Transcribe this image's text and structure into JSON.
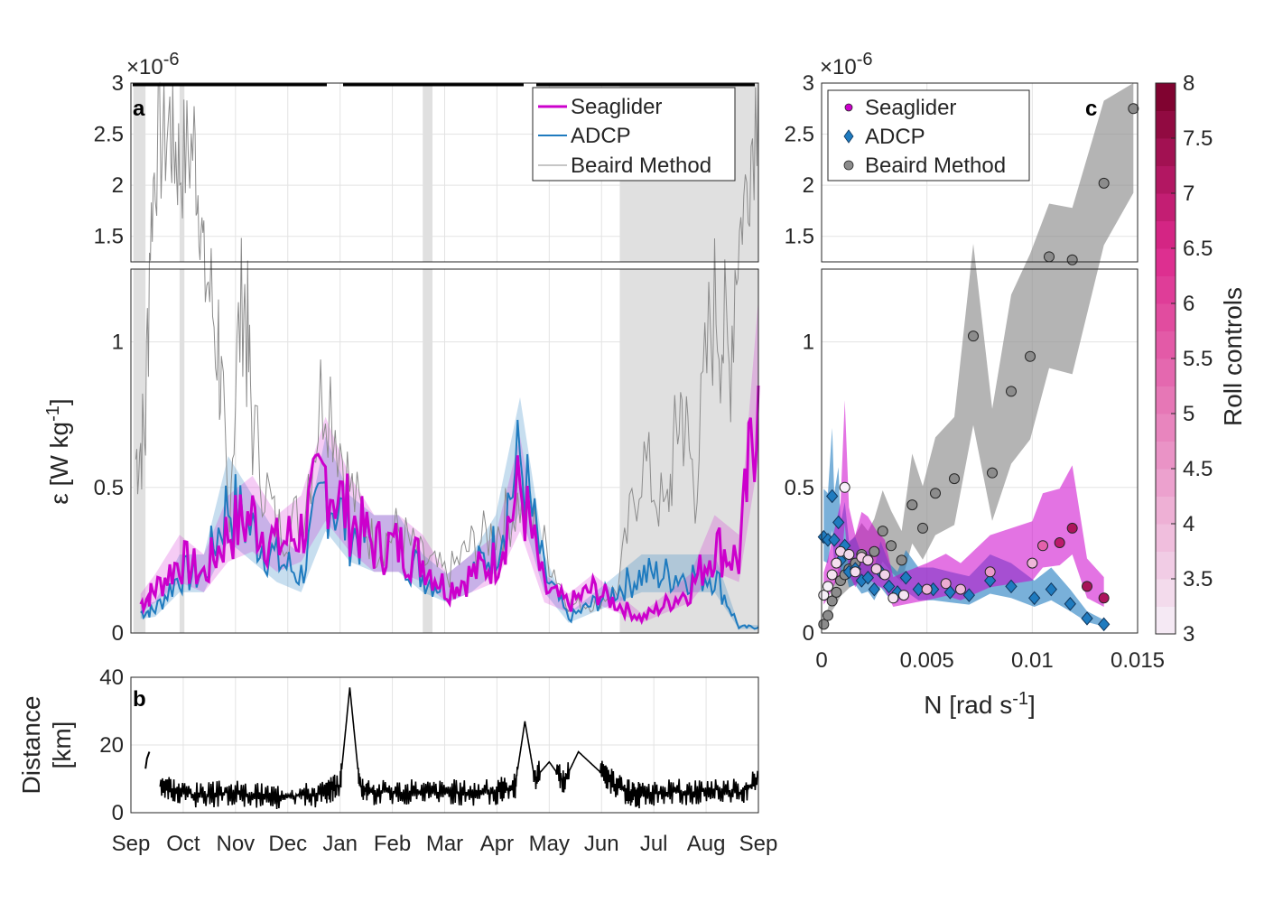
{
  "figure": {
    "panel_labels": {
      "a": "a",
      "b": "b",
      "c": "c"
    },
    "exponent_label": "×10",
    "exponent_power": "-6",
    "y_label_eps": "ε [W kg",
    "y_label_eps_sup": "-1",
    "y_label_eps_end": "]",
    "y_label_dist_1": "Distance",
    "y_label_dist_2": "[km]",
    "x_label_N": "N [rad s",
    "x_label_N_sup": "-1",
    "x_label_N_end": "]",
    "colorbar_label": "Roll controls"
  },
  "colors": {
    "seaglider": "#cc00cc",
    "adcp": "#1f7bbf",
    "beaird": "#8c8c8c",
    "shading": "#e0e0e0",
    "black": "#000000"
  },
  "chart_data": [
    {
      "panel": "a",
      "type": "line",
      "x_ticks": [
        "Sep",
        "Oct",
        "Nov",
        "Dec",
        "Jan",
        "Feb",
        "Mar",
        "Apr",
        "May",
        "Jun",
        "Jul",
        "Aug",
        "Sep"
      ],
      "y_ticks_lower": [
        "0",
        "0.5",
        "1"
      ],
      "y_ticks_upper": [
        "1.5",
        "2",
        "2.5",
        "3"
      ],
      "ylim_lower": [
        0,
        1.25
      ],
      "ylim_upper": [
        1.25,
        3
      ],
      "y_unit_multiplier": "1e-6",
      "legend": [
        "Seaglider",
        "ADCP",
        "Beaird Method"
      ],
      "legend_position": "top-right",
      "shaded_periods_month_index": [
        [
          0.05,
          0.3
        ],
        [
          1.0,
          1.1
        ],
        [
          6.0,
          6.2
        ],
        [
          10.05,
          12.9
        ]
      ],
      "series": [
        {
          "name": "Seaglider",
          "x_month_index": [
            0.2,
            0.5,
            1,
            1.5,
            2,
            2.5,
            3,
            3.5,
            4,
            4.5,
            5,
            5.5,
            6,
            6.5,
            7,
            7.5,
            8,
            8.5,
            9,
            9.5,
            10,
            10.5,
            11,
            11.5,
            12,
            12.5,
            12.9
          ],
          "values": [
            0.1,
            0.15,
            0.25,
            0.2,
            0.35,
            0.4,
            0.3,
            0.35,
            0.55,
            0.4,
            0.3,
            0.3,
            0.25,
            0.15,
            0.2,
            0.25,
            0.5,
            0.15,
            0.1,
            0.15,
            0.1,
            0.05,
            0.1,
            0.15,
            0.3,
            0.25,
            0.85
          ]
        },
        {
          "name": "ADCP",
          "x_month_index": [
            0.2,
            0.5,
            1,
            1.5,
            2,
            2.5,
            3,
            3.5,
            4,
            4.5,
            5,
            5.5,
            6,
            6.5,
            7,
            7.5,
            8,
            8.5,
            9,
            9.5,
            10,
            10.5,
            11,
            11.5,
            12,
            12.5,
            12.9
          ],
          "values": [
            0.07,
            0.08,
            0.2,
            0.2,
            0.45,
            0.35,
            0.25,
            0.2,
            0.5,
            0.35,
            0.3,
            0.3,
            0.2,
            0.15,
            0.2,
            0.3,
            0.6,
            0.2,
            0.05,
            0.1,
            0.15,
            0.2,
            0.2,
            0.2,
            0.2,
            0.02,
            0.02
          ]
        },
        {
          "name": "Beaird Method",
          "x_month_index": [
            0.1,
            0.3,
            0.5,
            0.8,
            1,
            1.3,
            1.5,
            1.8,
            2,
            2.3,
            2.5,
            3,
            3.5,
            4,
            4.5,
            5,
            5.5,
            6,
            6.5,
            7,
            7.5,
            8,
            8.5,
            9,
            9.5,
            10,
            10.5,
            11,
            11.3,
            11.6,
            12,
            12.3,
            12.6,
            12.9
          ],
          "values": [
            0.6,
            0.7,
            2.3,
            2.6,
            2.2,
            2.4,
            1.3,
            1.0,
            0.4,
            1.25,
            0.7,
            0.35,
            0.4,
            0.9,
            0.5,
            0.3,
            0.35,
            0.25,
            0.2,
            0.3,
            0.35,
            0.45,
            0.3,
            0.1,
            0.1,
            0.15,
            0.6,
            0.4,
            0.8,
            0.5,
            1.2,
            0.9,
            1.8,
            3.0
          ]
        }
      ]
    },
    {
      "panel": "b",
      "type": "line",
      "y_ticks": [
        "0",
        "20",
        "40"
      ],
      "ylim": [
        0,
        40
      ],
      "x_ticks": [
        "Sep",
        "Oct",
        "Nov",
        "Dec",
        "Jan",
        "Feb",
        "Mar",
        "Apr",
        "May",
        "Jun",
        "Jul",
        "Aug",
        "Sep"
      ],
      "series": [
        {
          "name": "",
          "x_month_index": [
            0.3,
            0.35,
            0.4,
            0.6,
            1,
            1.5,
            2,
            2.5,
            3,
            3.5,
            4,
            4.3,
            4.5,
            4.7,
            5,
            5.5,
            6,
            6.5,
            7,
            7.5,
            7.9,
            8.1,
            8.3,
            8.6,
            8.9,
            9.2,
            9.5,
            9.8,
            10.2,
            10.5,
            11,
            11.5,
            12,
            12.5,
            12.9
          ],
          "values": [
            13,
            17,
            19,
            9,
            6,
            5,
            6,
            5,
            5,
            5,
            6,
            8,
            37,
            8,
            6,
            6,
            6,
            6,
            6,
            6,
            8,
            27,
            10,
            15,
            9,
            18,
            14,
            10,
            6,
            5,
            6,
            6,
            7,
            6,
            9
          ]
        }
      ]
    },
    {
      "panel": "c",
      "type": "scatter",
      "x_ticks": [
        "0",
        "0.005",
        "0.01",
        "0.015"
      ],
      "xlim": [
        0,
        0.015
      ],
      "y_ticks_lower": [
        "0",
        "0.5",
        "1"
      ],
      "y_ticks_upper": [
        "1.5",
        "2",
        "2.5",
        "3"
      ],
      "ylim_lower": [
        0,
        1.25
      ],
      "ylim_upper": [
        1.25,
        3
      ],
      "legend": [
        "Seaglider",
        "ADCP",
        "Beaird Method"
      ],
      "legend_position": "top-left",
      "colorbar": {
        "label": "Roll controls",
        "ticks": [
          "3",
          "3.5",
          "4",
          "4.5",
          "5",
          "5.5",
          "6",
          "6.5",
          "7",
          "7.5",
          "8"
        ],
        "range": [
          3,
          8
        ]
      },
      "series": [
        {
          "name": "Beaird Method",
          "x": [
            0.0001,
            0.0003,
            0.0005,
            0.0007,
            0.0009,
            0.0011,
            0.0013,
            0.0016,
            0.0019,
            0.0022,
            0.0025,
            0.0029,
            0.0033,
            0.0038,
            0.0043,
            0.0048,
            0.0054,
            0.0063,
            0.0072,
            0.0081,
            0.009,
            0.0099,
            0.0108,
            0.0119,
            0.0134,
            0.0148
          ],
          "y": [
            0.03,
            0.06,
            0.11,
            0.14,
            0.18,
            0.2,
            0.22,
            0.24,
            0.27,
            0.25,
            0.28,
            0.35,
            0.3,
            0.25,
            0.44,
            0.36,
            0.48,
            0.53,
            1.02,
            0.55,
            0.83,
            0.95,
            1.3,
            1.27,
            2.02,
            2.75
          ]
        },
        {
          "name": "ADCP",
          "x": [
            0.0001,
            0.0003,
            0.0005,
            0.0006,
            0.0008,
            0.0009,
            0.0011,
            0.0013,
            0.0016,
            0.0019,
            0.0022,
            0.0025,
            0.0028,
            0.0032,
            0.0036,
            0.004,
            0.0046,
            0.0053,
            0.0061,
            0.007,
            0.008,
            0.009,
            0.0101,
            0.0109,
            0.0118,
            0.0126,
            0.0134
          ],
          "y": [
            0.33,
            0.32,
            0.47,
            0.32,
            0.38,
            0.25,
            0.3,
            0.21,
            0.22,
            0.18,
            0.19,
            0.15,
            0.21,
            0.16,
            0.14,
            0.19,
            0.15,
            0.15,
            0.14,
            0.13,
            0.18,
            0.16,
            0.12,
            0.15,
            0.1,
            0.05,
            0.03
          ]
        },
        {
          "name": "Seaglider",
          "x": [
            0.0001,
            0.0003,
            0.0005,
            0.0007,
            0.0009,
            0.0011,
            0.0013,
            0.0016,
            0.0019,
            0.0022,
            0.0026,
            0.003,
            0.0034,
            0.0039,
            0.005,
            0.0059,
            0.0066,
            0.008,
            0.01,
            0.0105,
            0.0113,
            0.0119,
            0.0126,
            0.0134
          ],
          "y": [
            0.13,
            0.16,
            0.2,
            0.24,
            0.28,
            0.5,
            0.27,
            0.21,
            0.26,
            0.25,
            0.22,
            0.2,
            0.12,
            0.13,
            0.15,
            0.17,
            0.15,
            0.21,
            0.24,
            0.3,
            0.31,
            0.36,
            0.16,
            0.12
          ],
          "roll": [
            3,
            3,
            3.2,
            3.3,
            3.5,
            3,
            3.4,
            3.3,
            3.6,
            3.5,
            3.6,
            3.5,
            3.2,
            3.2,
            4,
            4.2,
            4,
            4.5,
            4,
            5.5,
            7,
            7.2,
            7.3,
            7.2
          ]
        }
      ]
    }
  ]
}
